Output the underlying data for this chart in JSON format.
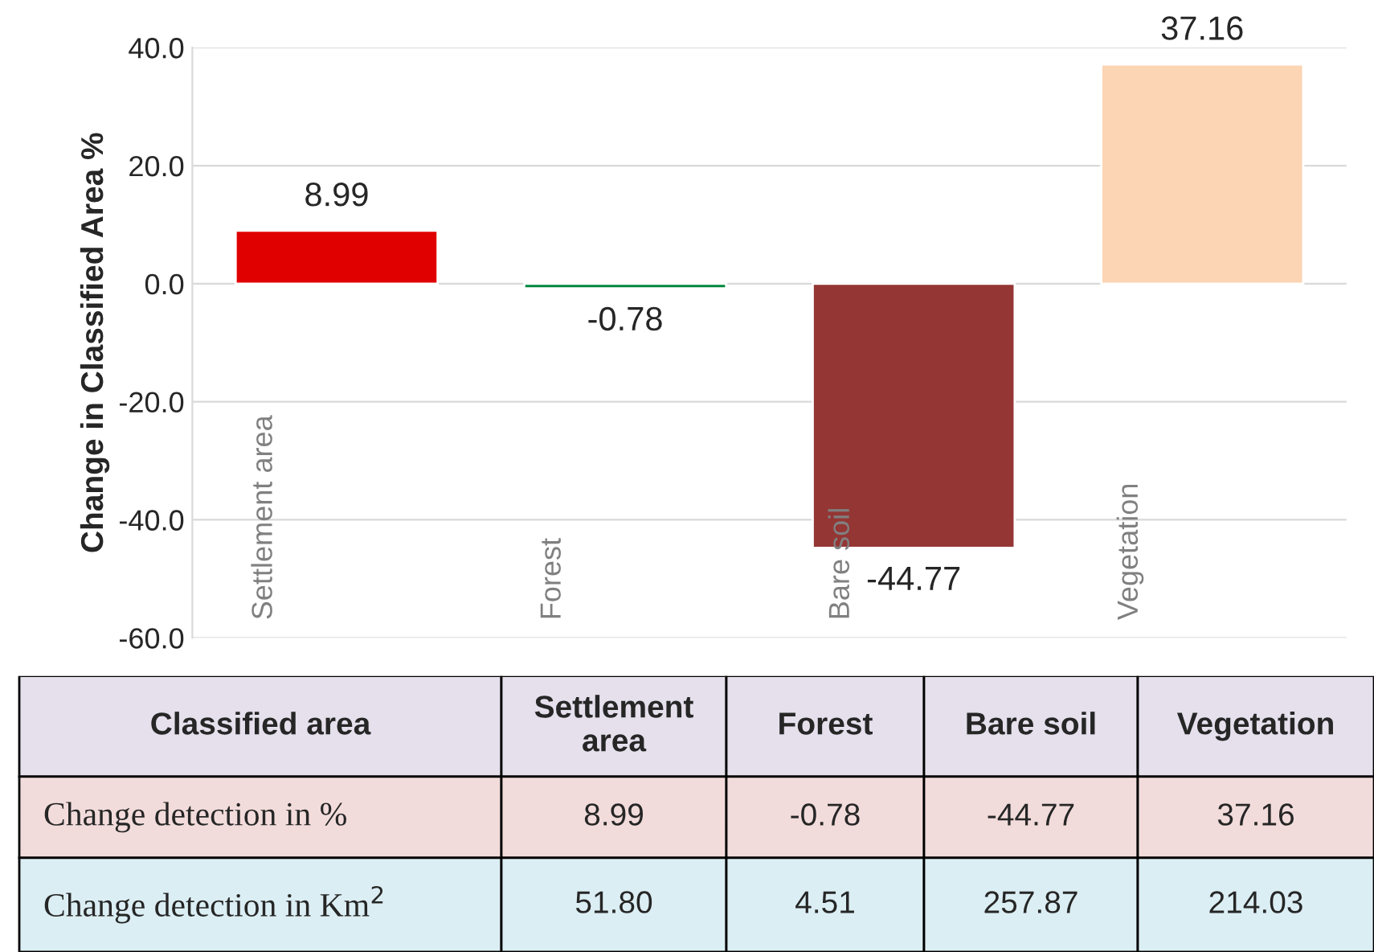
{
  "chart_data": {
    "type": "bar",
    "ylabel": "Change in Classified Area %",
    "categories": [
      "Settlement area",
      "Forest",
      "Bare soil",
      "Vegetation"
    ],
    "values": [
      8.99,
      -0.78,
      -44.77,
      37.16
    ],
    "colors": [
      "#e00000",
      "#00873c",
      "#943634",
      "#fcd5b4"
    ],
    "ylim": [
      -60,
      40
    ],
    "yticks": [
      {
        "value": -60,
        "label": "-60.0"
      },
      {
        "value": -40,
        "label": "-40.0"
      },
      {
        "value": -20,
        "label": "-20.0"
      },
      {
        "value": 0,
        "label": "0.0"
      },
      {
        "value": 20,
        "label": "20.0"
      },
      {
        "value": 40,
        "label": "40.0"
      }
    ],
    "grid": "y",
    "data_labels": true,
    "annotations": [
      "Classified area",
      "Change detection in %",
      "Change detection in Km$^{2}$",
      "8.99",
      "-0.78",
      "-44.77",
      "37.16",
      "51.80",
      "4.51",
      "257.87",
      "214.03"
    ]
  }
}
